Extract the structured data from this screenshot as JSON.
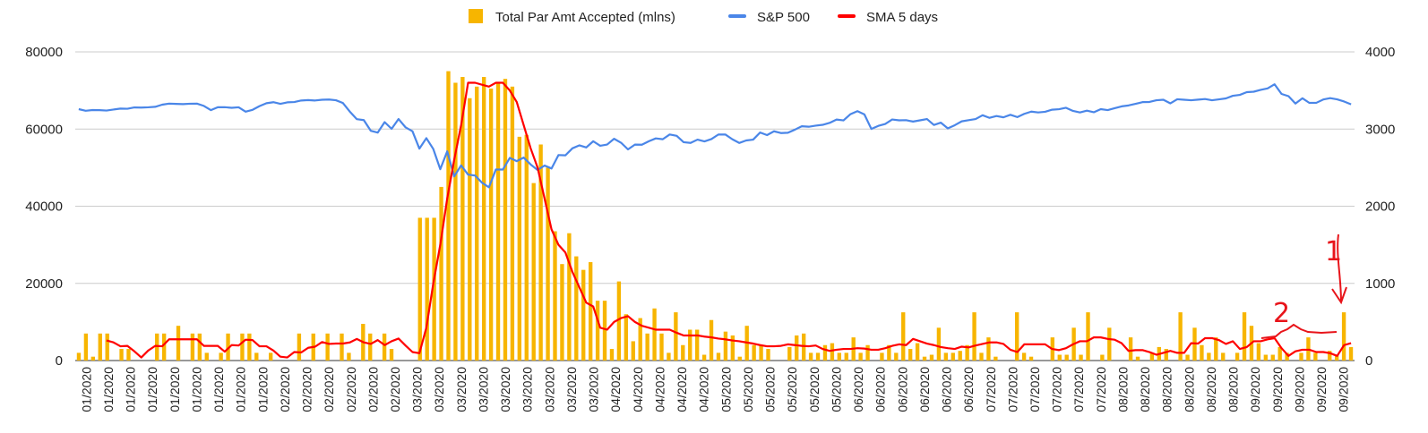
{
  "chart_data": {
    "type": "bar+line",
    "title": "",
    "legend_position": "top-center",
    "grid": true,
    "y_left": {
      "range": [
        0,
        80000
      ],
      "ticks": [
        "0",
        "20000",
        "40000",
        "60000",
        "80000"
      ],
      "label": ""
    },
    "y_right": {
      "range": [
        0,
        4000
      ],
      "ticks": [
        "0",
        "1000",
        "2000",
        "3000",
        "4000"
      ],
      "label": ""
    },
    "x_visible_labels": [
      "01/2020",
      "01/2020",
      "01/2020",
      "01/2020",
      "01/2020",
      "01/2020",
      "01/2020",
      "01/2020",
      "01/2020",
      "02/2020",
      "02/2020",
      "02/2020",
      "02/2020",
      "02/2020",
      "02/2020",
      "03/2020",
      "03/2020",
      "03/2020",
      "03/2020",
      "03/2020",
      "03/2020",
      "03/2020",
      "03/2020",
      "03/2020",
      "04/2020",
      "04/2020",
      "04/2020",
      "04/2020",
      "04/2020",
      "05/2020",
      "05/2020",
      "05/2020",
      "05/2020",
      "05/2020",
      "05/2020",
      "06/2020",
      "06/2020",
      "06/2020",
      "06/2020",
      "06/2020",
      "06/2020",
      "07/2020",
      "07/2020",
      "07/2020",
      "07/2020",
      "07/2020",
      "07/2020",
      "08/2020",
      "08/2020",
      "08/2020",
      "08/2020",
      "08/2020",
      "08/2020",
      "09/2020",
      "09/2020",
      "09/2020",
      "09/2020",
      "09/2020"
    ],
    "series": [
      {
        "name": "Total Par Amt Accepted (mlns)",
        "type": "bar",
        "axis": "left",
        "color": "#f7b500",
        "values": [
          2000,
          7000,
          1000,
          7000,
          7000,
          0,
          3000,
          3000,
          0,
          0,
          0,
          7000,
          7000,
          0,
          9000,
          0,
          7000,
          7000,
          2000,
          0,
          2000,
          7000,
          0,
          7000,
          7000,
          2000,
          0,
          2000,
          0,
          0,
          0,
          7000,
          0,
          7000,
          0,
          7000,
          0,
          7000,
          2000,
          0,
          9500,
          7000,
          0,
          7000,
          3000,
          0,
          0,
          0,
          37000,
          37000,
          37000,
          45000,
          75000,
          72000,
          73500,
          68000,
          71000,
          73500,
          70500,
          72000,
          73000,
          71000,
          58000,
          58500,
          46000,
          56000,
          50000,
          33500,
          25000,
          33000,
          27000,
          23500,
          25500,
          15500,
          15500,
          3000,
          20500,
          12000,
          5000,
          11000,
          7000,
          13500,
          7000,
          2000,
          12500,
          4000,
          8000,
          8000,
          1500,
          10500,
          2000,
          7500,
          6500,
          1000,
          9000,
          4000,
          4000,
          3000,
          0,
          0,
          3500,
          6500,
          7000,
          2000,
          2000,
          4000,
          4500,
          2000,
          2000,
          6000,
          2000,
          4000,
          0,
          2000,
          4000,
          2000,
          12500,
          3000,
          4500,
          1000,
          1500,
          8500,
          2000,
          2000,
          2500,
          4000,
          12500,
          2000,
          6000,
          1000,
          0,
          0,
          12500,
          2000,
          1000,
          0,
          0,
          6000,
          1500,
          1500,
          8500,
          1500,
          12500,
          0,
          1500,
          8500,
          0,
          0,
          6000,
          1000,
          0,
          2000,
          3500,
          3000,
          0,
          12500,
          1500,
          8500,
          4000,
          2000,
          6000,
          2000,
          0,
          2000,
          12500,
          9000,
          4500,
          1500,
          1500,
          3500,
          2000,
          0,
          2000,
          6000,
          2000,
          0,
          2500,
          1500,
          12500,
          3500
        ]
      },
      {
        "name": "S&P 500",
        "type": "line",
        "axis": "right",
        "color": "#4a86e8",
        "values": [
          3258,
          3237,
          3246,
          3245,
          3240,
          3253,
          3265,
          3263,
          3280,
          3278,
          3282,
          3288,
          3316,
          3330,
          3326,
          3323,
          3328,
          3330,
          3300,
          3245,
          3283,
          3283,
          3275,
          3282,
          3225,
          3249,
          3297,
          3335,
          3348,
          3327,
          3346,
          3350,
          3370,
          3375,
          3370,
          3380,
          3383,
          3373,
          3337,
          3225,
          3128,
          3116,
          2978,
          2954,
          3090,
          3003,
          3130,
          3023,
          2972,
          2746,
          2882,
          2741,
          2480,
          2711,
          2386,
          2529,
          2409,
          2398,
          2305,
          2245,
          2476,
          2475,
          2626,
          2584,
          2630,
          2541,
          2470,
          2527,
          2489,
          2663,
          2659,
          2750,
          2789,
          2761,
          2842,
          2783,
          2799,
          2874,
          2823,
          2736,
          2799,
          2797,
          2842,
          2879,
          2868,
          2930,
          2912,
          2830,
          2820,
          2863,
          2840,
          2870,
          2929,
          2930,
          2868,
          2820,
          2852,
          2863,
          2955,
          2922,
          2971,
          2948,
          2952,
          2992,
          3036,
          3030,
          3044,
          3055,
          3080,
          3123,
          3112,
          3193,
          3232,
          3190,
          3002,
          3041,
          3066,
          3124,
          3113,
          3115,
          3097,
          3113,
          3130,
          3053,
          3083,
          3009,
          3050,
          3100,
          3115,
          3130,
          3179,
          3145,
          3169,
          3152,
          3185,
          3155,
          3197,
          3226,
          3215,
          3224,
          3251,
          3257,
          3276,
          3235,
          3215,
          3239,
          3218,
          3258,
          3246,
          3271,
          3294,
          3306,
          3327,
          3349,
          3351,
          3373,
          3380,
          3333,
          3386,
          3380,
          3373,
          3381,
          3389,
          3373,
          3385,
          3397,
          3431,
          3443,
          3478,
          3484,
          3508,
          3527,
          3580,
          3455,
          3426,
          3331,
          3399,
          3339,
          3340,
          3383,
          3401,
          3385,
          3357,
          3320
        ]
      },
      {
        "name": "SMA 5 days",
        "type": "line",
        "axis": "left",
        "color": "#ff0000",
        "values": [
          null,
          null,
          null,
          null,
          5200,
          4700,
          3700,
          3800,
          2400,
          800,
          2600,
          3800,
          3700,
          5500,
          5500,
          5500,
          5500,
          5500,
          3800,
          3800,
          3800,
          2300,
          4000,
          3900,
          5400,
          5300,
          3700,
          3700,
          2600,
          1000,
          800,
          2200,
          2100,
          3300,
          3600,
          4800,
          4300,
          4400,
          4400,
          4700,
          5600,
          4700,
          4300,
          5300,
          4000,
          5000,
          5700,
          3900,
          2200,
          1900,
          8500,
          20000,
          30000,
          42000,
          52000,
          61000,
          72000,
          72000,
          71500,
          71000,
          72000,
          72000,
          70000,
          67000,
          61000,
          55000,
          50000,
          42000,
          34000,
          30000,
          28000,
          23000,
          19000,
          15000,
          14000,
          8500,
          8000,
          10000,
          11000,
          11500,
          10000,
          9000,
          8500,
          8000,
          8000,
          8000,
          7200,
          6500,
          6500,
          6500,
          6200,
          6000,
          5700,
          5500,
          5200,
          5000,
          4700,
          4400,
          4000,
          3700,
          3700,
          3800,
          4200,
          4000,
          3800,
          3700,
          3900,
          3000,
          2500,
          2800,
          3000,
          3000,
          3200,
          3100,
          2800,
          2800,
          3200,
          3800,
          4200,
          4000,
          5600,
          5000,
          4400,
          4000,
          3500,
          3200,
          3000,
          3600,
          3400,
          3900,
          4300,
          4700,
          4700,
          4300,
          2800,
          2200,
          4200,
          4200,
          4200,
          4200,
          3000,
          2700,
          3200,
          4200,
          5000,
          5000,
          6000,
          6000,
          5600,
          5400,
          4500,
          2500,
          2700,
          2700,
          2200,
          1500,
          2000,
          2500,
          2000,
          2000,
          4500,
          4400,
          5800,
          5800,
          5300,
          4300,
          5000,
          3000,
          3500,
          5000,
          5000,
          5500,
          5800,
          3200,
          1200,
          2400,
          2800,
          2800,
          2200,
          2200,
          1900,
          1200,
          4000,
          4500
        ]
      }
    ],
    "annotations": [
      {
        "text": "1",
        "color": "#e8141a",
        "kind": "hand-drawn number with arrow pointing down to the last bar"
      },
      {
        "text": "2",
        "color": "#e8141a",
        "kind": "hand-drawn number above a rough stroke over the SMA line"
      }
    ]
  }
}
